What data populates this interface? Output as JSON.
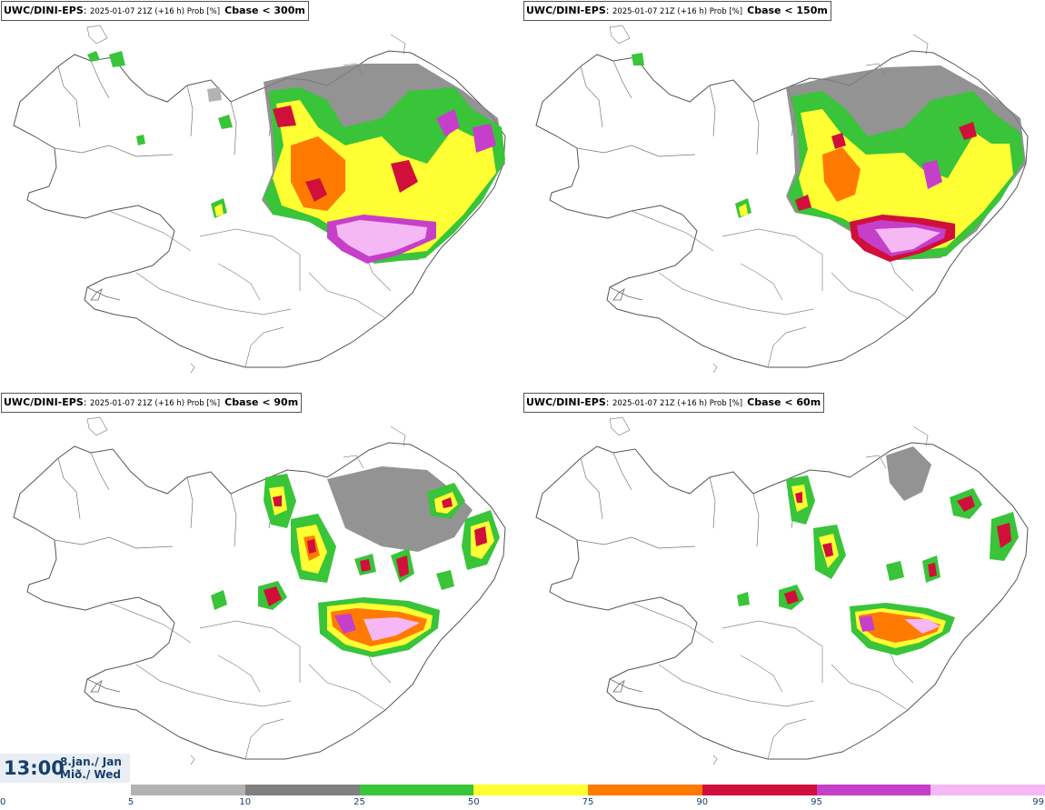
{
  "panels": [
    {
      "model": "UWC/DINI-EPS",
      "meta": "2025-01-07 21Z (+16 h) Prob [%]",
      "param": "Cbase < 300m"
    },
    {
      "model": "UWC/DINI-EPS",
      "meta": "2025-01-07 21Z (+16 h) Prob [%]",
      "param": "Cbase < 150m"
    },
    {
      "model": "UWC/DINI-EPS",
      "meta": "2025-01-07 21Z (+16 h) Prob [%]",
      "param": "Cbase < 90m"
    },
    {
      "model": "UWC/DINI-EPS",
      "meta": "2025-01-07 21Z (+16 h) Prob [%]",
      "param": "Cbase < 60m"
    }
  ],
  "valid_time": {
    "time": "13:00",
    "date_line1": "8.jan./ Jan",
    "date_line2": "Mið./ Wed"
  },
  "legend": {
    "ticks": [
      "0",
      "5",
      "10",
      "25",
      "50",
      "75",
      "90",
      "95",
      "99"
    ],
    "colors": [
      "#b3b3b3",
      "#808080",
      "#39c439",
      "#ffff33",
      "#ff7a00",
      "#d0103a",
      "#c63fc9",
      "#f6b8f4"
    ]
  }
}
